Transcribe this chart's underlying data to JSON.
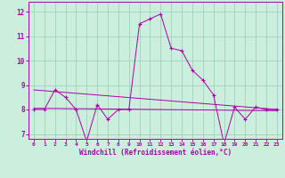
{
  "xlabel": "Windchill (Refroidissement éolien,°C)",
  "xlim": [
    -0.5,
    23.5
  ],
  "ylim": [
    6.8,
    12.4
  ],
  "yticks": [
    7,
    8,
    9,
    10,
    11,
    12
  ],
  "xticks": [
    0,
    1,
    2,
    3,
    4,
    5,
    6,
    7,
    8,
    9,
    10,
    11,
    12,
    13,
    14,
    15,
    16,
    17,
    18,
    19,
    20,
    21,
    22,
    23
  ],
  "bg_color": "#cceedd",
  "line_color": "#aa00aa",
  "grid_color": "#99ccbb",
  "line1_x": [
    0,
    1,
    2,
    3,
    4,
    5,
    6,
    7,
    8,
    9,
    10,
    11,
    12,
    13,
    14,
    15,
    16,
    17,
    18,
    19,
    20,
    21,
    22,
    23
  ],
  "line1_y": [
    8.0,
    8.0,
    8.8,
    8.5,
    8.0,
    6.7,
    8.2,
    7.6,
    8.0,
    8.0,
    11.5,
    11.7,
    11.9,
    10.5,
    10.4,
    9.6,
    9.2,
    8.6,
    6.6,
    8.1,
    7.6,
    8.1,
    8.0,
    8.0
  ],
  "line2_x": [
    0,
    23
  ],
  "line2_y": [
    8.8,
    8.0
  ],
  "line3_x": [
    0,
    23
  ],
  "line3_y": [
    8.05,
    7.95
  ]
}
